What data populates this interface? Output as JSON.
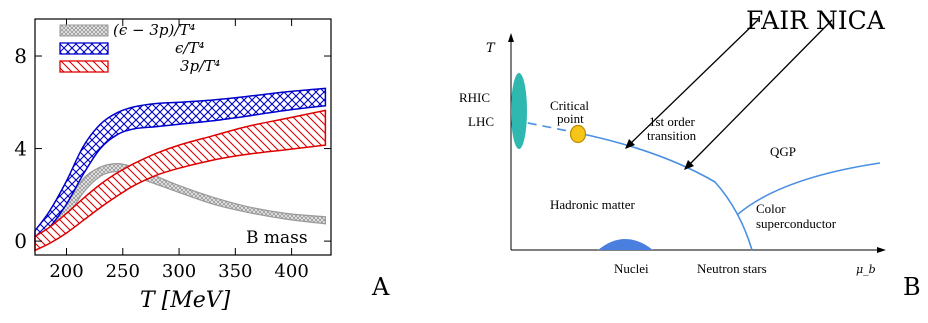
{
  "panel_a": {
    "panel_label": "A",
    "annotation": "B mass",
    "xlabel": "T [MeV]",
    "legend": [
      {
        "label": "(ϵ − 3p)/T⁴",
        "color": "#9a9a9a",
        "hatch": "cross-hatch"
      },
      {
        "label": "ϵ/T⁴",
        "color": "#0000cc",
        "hatch": "cross-hatch"
      },
      {
        "label": "3p/T⁴",
        "color": "#dd0000",
        "hatch": "diagonal"
      }
    ],
    "chart_data": {
      "type": "area",
      "xlim": [
        172,
        435
      ],
      "ylim": [
        -0.6,
        9.6
      ],
      "xticks": [
        200,
        250,
        300,
        350,
        400
      ],
      "yticks": [
        0,
        4,
        8
      ],
      "series": [
        {
          "name": "(ϵ − 3p)/T⁴",
          "x": [
            172,
            185,
            200,
            215,
            230,
            245,
            260,
            280,
            300,
            330,
            360,
            395,
            430
          ],
          "lower": [
            -0.4,
            0.1,
            1.0,
            2.1,
            2.8,
            3.0,
            2.8,
            2.45,
            2.1,
            1.6,
            1.25,
            0.95,
            0.75
          ],
          "upper": [
            -0.1,
            0.5,
            1.6,
            2.7,
            3.2,
            3.35,
            3.2,
            2.8,
            2.4,
            1.9,
            1.5,
            1.2,
            1.05
          ]
        },
        {
          "name": "ϵ/T⁴",
          "x": [
            172,
            185,
            200,
            215,
            230,
            245,
            260,
            280,
            300,
            330,
            360,
            395,
            430
          ],
          "lower": [
            0.0,
            0.6,
            1.6,
            2.9,
            4.0,
            4.6,
            4.85,
            4.95,
            5.05,
            5.2,
            5.4,
            5.65,
            5.85
          ],
          "upper": [
            0.45,
            1.3,
            2.6,
            4.1,
            5.05,
            5.55,
            5.8,
            5.95,
            6.0,
            6.1,
            6.25,
            6.45,
            6.6
          ]
        },
        {
          "name": "3p/T⁴",
          "x": [
            172,
            185,
            200,
            215,
            230,
            245,
            260,
            280,
            300,
            330,
            360,
            395,
            430
          ],
          "lower": [
            -0.4,
            -0.1,
            0.35,
            0.9,
            1.45,
            1.95,
            2.4,
            2.85,
            3.15,
            3.5,
            3.75,
            3.95,
            4.15
          ],
          "upper": [
            0.2,
            0.6,
            1.2,
            1.85,
            2.45,
            2.95,
            3.35,
            3.8,
            4.15,
            4.55,
            4.95,
            5.3,
            5.65
          ]
        }
      ]
    }
  },
  "panel_b": {
    "panel_label": "B",
    "axis_y": "T",
    "axis_x": "μ_b",
    "header": "FAIR NICA",
    "labels": {
      "rhic": "RHIC",
      "lhc": "LHC",
      "critical_point": "Critical point",
      "first_order": "1st order transition",
      "qgp": "QGP",
      "hadronic": "Hadronic matter",
      "color_sc": "Color superconductor",
      "nuclei": "Nuclei",
      "neutron_stars": "Neutron stars"
    },
    "colors": {
      "boundary": "#4a90e2",
      "heavy_ion": "#2fb8b0",
      "critical_point": "#f5c518",
      "nuclei": "#4a7fe0"
    }
  }
}
